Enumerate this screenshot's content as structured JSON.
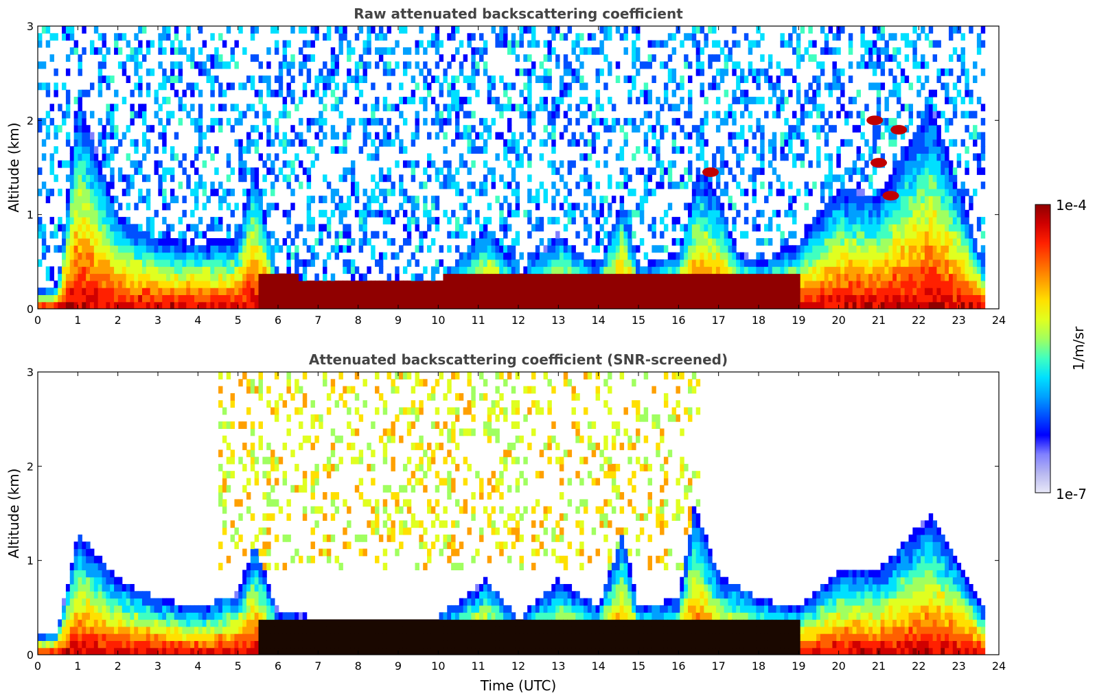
{
  "chart_data": [
    {
      "type": "heatmap",
      "title": "Raw attenuated backscattering coefficient",
      "xlabel": "",
      "ylabel": "Altitude (km)",
      "xlim": [
        0,
        24
      ],
      "ylim": [
        0,
        3
      ],
      "x_ticks": [
        "0",
        "1",
        "2",
        "3",
        "4",
        "5",
        "6",
        "7",
        "8",
        "9",
        "10",
        "11",
        "12",
        "13",
        "14",
        "15",
        "16",
        "17",
        "18",
        "19",
        "20",
        "21",
        "22",
        "23",
        "24"
      ],
      "y_ticks": [
        "0",
        "1",
        "2",
        "3"
      ],
      "boundary_layer_top_km": [
        [
          0,
          0.2
        ],
        [
          0.5,
          0.25
        ],
        [
          1,
          2.3
        ],
        [
          2,
          1.0
        ],
        [
          3,
          0.75
        ],
        [
          4,
          0.7
        ],
        [
          5,
          0.75
        ],
        [
          5.4,
          1.6
        ],
        [
          6,
          0.35
        ],
        [
          8,
          0.3
        ],
        [
          10,
          0.3
        ],
        [
          11.2,
          0.9
        ],
        [
          12,
          0.35
        ],
        [
          13,
          0.8
        ],
        [
          14,
          0.45
        ],
        [
          14.6,
          1.2
        ],
        [
          15,
          0.45
        ],
        [
          16,
          0.6
        ],
        [
          16.5,
          1.5
        ],
        [
          17,
          1.2
        ],
        [
          17.5,
          0.6
        ],
        [
          18,
          0.5
        ],
        [
          19,
          0.7
        ],
        [
          20,
          1.3
        ],
        [
          21,
          1.2
        ],
        [
          22.3,
          2.2
        ],
        [
          23,
          1.3
        ],
        [
          23.6,
          0.5
        ]
      ],
      "cloud_features_km": [
        [
          20.9,
          2.0
        ],
        [
          21,
          1.55
        ],
        [
          21.5,
          1.9
        ],
        [
          21.3,
          1.2
        ],
        [
          16.8,
          1.45
        ]
      ]
    },
    {
      "type": "heatmap",
      "title": "Attenuated backscattering coefficient (SNR-screened)",
      "xlabel": "Time (UTC)",
      "ylabel": "Altitude (km)",
      "xlim": [
        0,
        24
      ],
      "ylim": [
        0,
        3
      ],
      "x_ticks": [
        "0",
        "1",
        "2",
        "3",
        "4",
        "5",
        "6",
        "7",
        "8",
        "9",
        "10",
        "11",
        "12",
        "13",
        "14",
        "15",
        "16",
        "17",
        "18",
        "19",
        "20",
        "21",
        "22",
        "23",
        "24"
      ],
      "y_ticks": [
        "0",
        "1",
        "2",
        "3"
      ],
      "boundary_layer_top_km": [
        [
          0,
          0.2
        ],
        [
          0.5,
          0.25
        ],
        [
          1,
          1.3
        ],
        [
          2,
          0.8
        ],
        [
          3,
          0.6
        ],
        [
          4,
          0.5
        ],
        [
          5,
          0.65
        ],
        [
          5.4,
          1.2
        ],
        [
          6,
          0.45
        ],
        [
          8,
          0.35
        ],
        [
          10,
          0.4
        ],
        [
          11.2,
          0.8
        ],
        [
          12,
          0.38
        ],
        [
          13,
          0.8
        ],
        [
          14,
          0.5
        ],
        [
          14.6,
          1.3
        ],
        [
          15,
          0.5
        ],
        [
          16,
          0.6
        ],
        [
          16.4,
          1.6
        ],
        [
          17,
          0.85
        ],
        [
          18,
          0.6
        ],
        [
          19,
          0.5
        ],
        [
          20,
          0.9
        ],
        [
          21,
          0.9
        ],
        [
          22.3,
          1.5
        ],
        [
          23,
          1.0
        ],
        [
          23.6,
          0.5
        ]
      ]
    }
  ],
  "colorbar": {
    "label": "1/m/sr",
    "max_label": "1e-4",
    "min_label": "1e-7",
    "colors": [
      "#e8e8f8",
      "#b8b8f0",
      "#8080ff",
      "#0000ff",
      "#0050ff",
      "#00a0ff",
      "#00e0ff",
      "#40ffc0",
      "#a0ff60",
      "#e0ff20",
      "#ffe000",
      "#ffa000",
      "#ff6000",
      "#ff2000",
      "#d00000",
      "#900000"
    ]
  }
}
